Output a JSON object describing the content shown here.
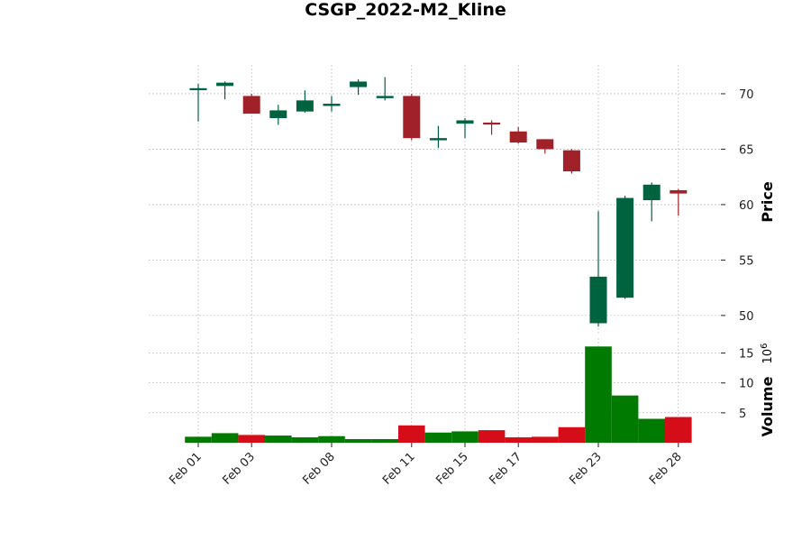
{
  "chart_data": {
    "type": "candlestick",
    "title": "CSGP_2022-M2_Kline",
    "price_axis": {
      "label": "Price",
      "ticks": [
        50,
        55,
        60,
        65,
        70
      ],
      "ylim": [
        48.2,
        72.6
      ]
    },
    "volume_axis": {
      "label": "Volume",
      "offset_label": "10^6",
      "offset_base": "10",
      "offset_exp": "6",
      "ticks": [
        5,
        10,
        15
      ],
      "ylim": [
        0,
        17.5
      ]
    },
    "x_tick_labels": [
      {
        "index": 0,
        "label": "Feb 01"
      },
      {
        "index": 2,
        "label": "Feb 03"
      },
      {
        "index": 5,
        "label": "Feb 08"
      },
      {
        "index": 8,
        "label": "Feb 11"
      },
      {
        "index": 10,
        "label": "Feb 15"
      },
      {
        "index": 12,
        "label": "Feb 17"
      },
      {
        "index": 15,
        "label": "Feb 23"
      },
      {
        "index": 18,
        "label": "Feb 28"
      }
    ],
    "candles": [
      {
        "date": "Feb 01",
        "open": 70.4,
        "high": 70.9,
        "low": 67.5,
        "close": 70.5,
        "volume": 1.0
      },
      {
        "date": "Feb 02",
        "open": 70.7,
        "high": 71.1,
        "low": 69.5,
        "close": 71.0,
        "volume": 1.6
      },
      {
        "date": "Feb 03",
        "open": 69.8,
        "high": 70.0,
        "low": 68.2,
        "close": 68.2,
        "volume": 1.3
      },
      {
        "date": "Feb 04",
        "open": 67.8,
        "high": 69.0,
        "low": 67.2,
        "close": 68.5,
        "volume": 1.2
      },
      {
        "date": "Feb 07",
        "open": 68.4,
        "high": 70.3,
        "low": 68.3,
        "close": 69.4,
        "volume": 0.9
      },
      {
        "date": "Feb 08",
        "open": 68.9,
        "high": 69.8,
        "low": 68.4,
        "close": 69.1,
        "volume": 1.1
      },
      {
        "date": "Feb 09",
        "open": 70.6,
        "high": 71.3,
        "low": 69.9,
        "close": 71.1,
        "volume": 0.6
      },
      {
        "date": "Feb 10",
        "open": 69.6,
        "high": 71.5,
        "low": 69.4,
        "close": 69.8,
        "volume": 0.6
      },
      {
        "date": "Feb 11",
        "open": 69.8,
        "high": 70.0,
        "low": 65.8,
        "close": 66.0,
        "volume": 2.9
      },
      {
        "date": "Feb 14",
        "open": 65.8,
        "high": 67.1,
        "low": 65.1,
        "close": 66.0,
        "volume": 1.7
      },
      {
        "date": "Feb 15",
        "open": 67.3,
        "high": 67.8,
        "low": 66.0,
        "close": 67.6,
        "volume": 1.9
      },
      {
        "date": "Feb 16",
        "open": 67.4,
        "high": 67.6,
        "low": 66.3,
        "close": 67.3,
        "volume": 2.1
      },
      {
        "date": "Feb 17",
        "open": 66.6,
        "high": 67.0,
        "low": 65.5,
        "close": 65.6,
        "volume": 0.9
      },
      {
        "date": "Feb 18",
        "open": 65.9,
        "high": 65.9,
        "low": 64.6,
        "close": 65.0,
        "volume": 1.0
      },
      {
        "date": "Feb 22",
        "open": 64.9,
        "high": 65.0,
        "low": 62.8,
        "close": 63.0,
        "volume": 2.6
      },
      {
        "date": "Feb 23",
        "open": 49.3,
        "high": 59.4,
        "low": 49.0,
        "close": 53.5,
        "volume": 16.1
      },
      {
        "date": "Feb 24",
        "open": 51.6,
        "high": 60.8,
        "low": 51.5,
        "close": 60.6,
        "volume": 7.9
      },
      {
        "date": "Feb 25",
        "open": 60.4,
        "high": 62.0,
        "low": 58.5,
        "close": 61.8,
        "volume": 4.0
      },
      {
        "date": "Feb 28",
        "open": 61.3,
        "high": 61.4,
        "low": 59.0,
        "close": 61.0,
        "volume": 4.3
      }
    ],
    "colors": {
      "up_candle": "#006340",
      "down_candle": "#a02128",
      "up_volume": "#007a00",
      "down_volume": "#d50d18",
      "grid": "#b0b0b0"
    },
    "grid": true
  }
}
